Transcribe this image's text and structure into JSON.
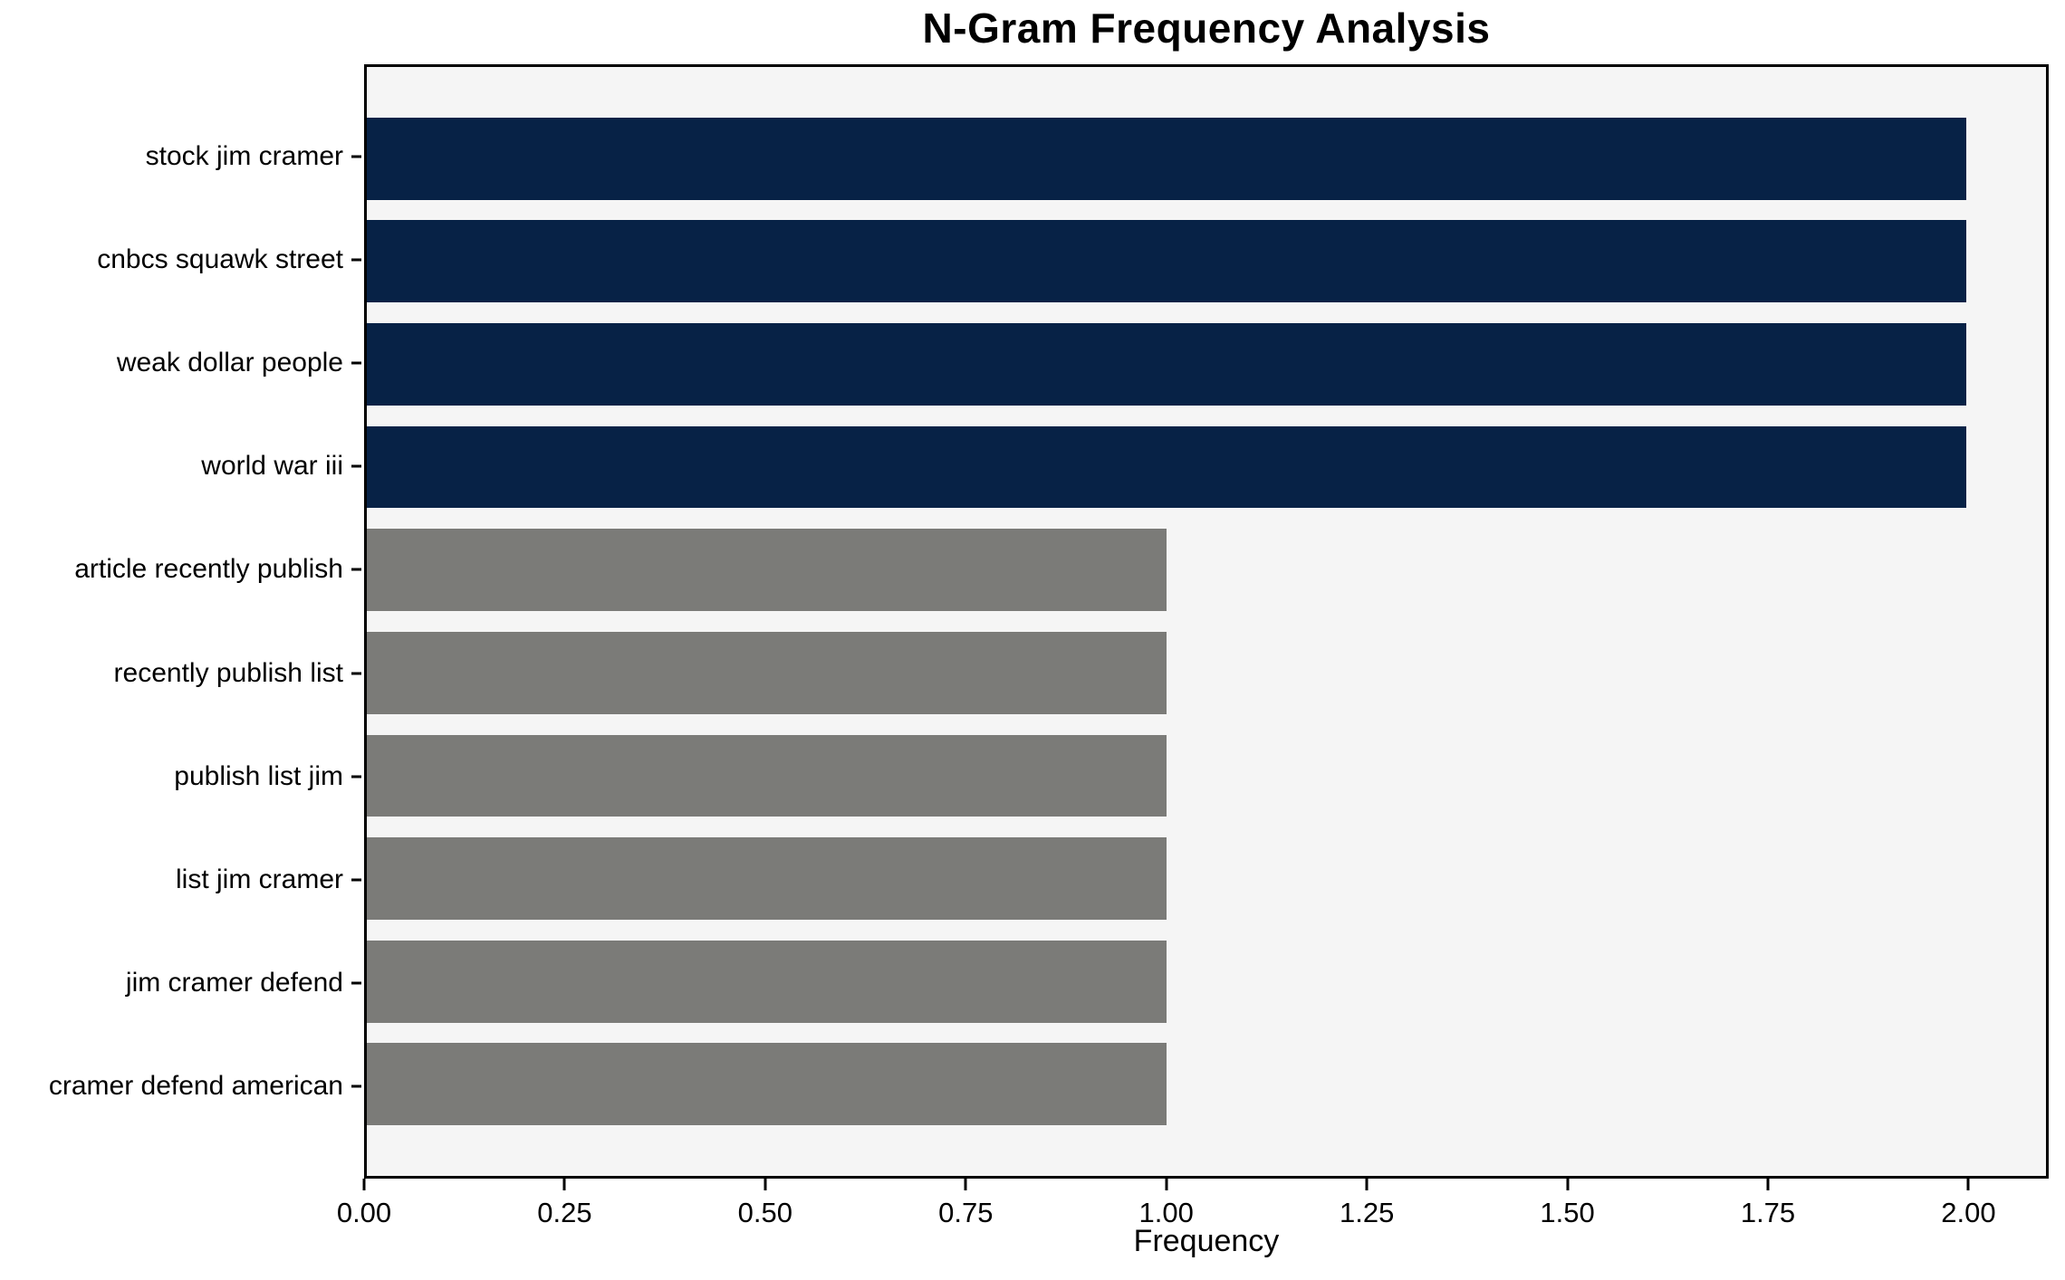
{
  "chart_data": {
    "type": "bar",
    "orientation": "horizontal",
    "title": "N-Gram Frequency Analysis",
    "xlabel": "Frequency",
    "ylabel": "",
    "categories": [
      "stock jim cramer",
      "cnbcs squawk street",
      "weak dollar people",
      "world war iii",
      "article recently publish",
      "recently publish list",
      "publish list jim",
      "list jim cramer",
      "jim cramer defend",
      "cramer defend american"
    ],
    "values": [
      2,
      2,
      2,
      2,
      1,
      1,
      1,
      1,
      1,
      1
    ],
    "bar_colors": [
      "#072246",
      "#072246",
      "#072246",
      "#072246",
      "#7b7b78",
      "#7b7b78",
      "#7b7b78",
      "#7b7b78",
      "#7b7b78",
      "#7b7b78"
    ],
    "xlim": [
      0,
      2.1
    ],
    "xticks": [
      0,
      0.25,
      0.5,
      0.75,
      1.0,
      1.25,
      1.5,
      1.75,
      2.0
    ],
    "xtick_labels": [
      "0.00",
      "0.25",
      "0.50",
      "0.75",
      "1.00",
      "1.25",
      "1.50",
      "1.75",
      "2.00"
    ],
    "grid": false,
    "legend_position": "none",
    "plot_background": "#f5f5f5",
    "spine_color": "#000000"
  }
}
